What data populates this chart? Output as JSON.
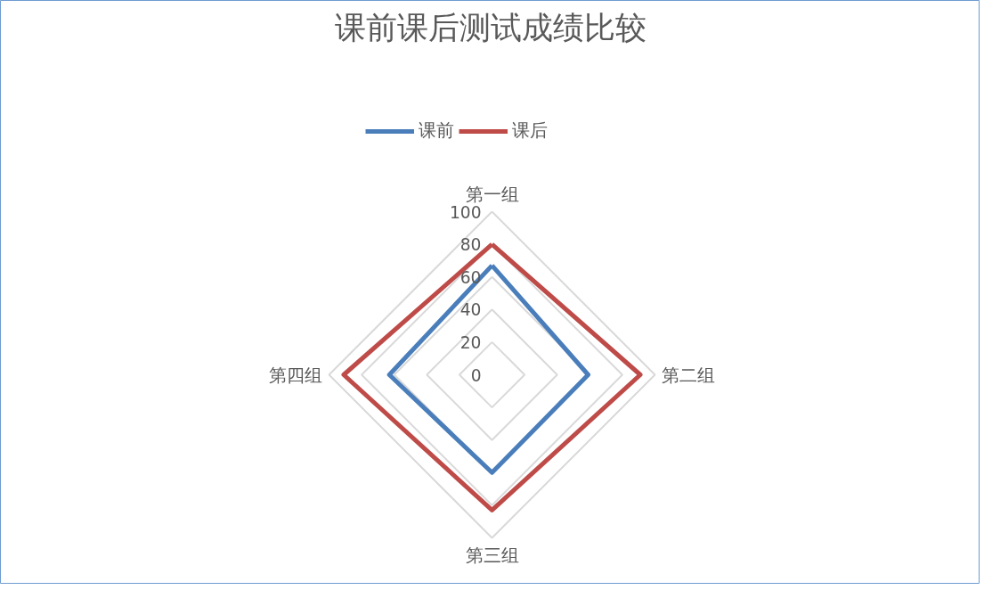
{
  "chart_data": {
    "type": "radar",
    "title": "课前课后测试成绩比较",
    "categories": [
      "第一组",
      "第二组",
      "第三组",
      "第四组"
    ],
    "series": [
      {
        "name": "课前",
        "color": "#4a7ebb",
        "values": [
          67,
          59,
          60,
          63
        ]
      },
      {
        "name": "课后",
        "color": "#be4b48",
        "values": [
          80,
          91,
          83,
          91
        ]
      }
    ],
    "ylim": [
      0,
      100
    ],
    "yticks": [
      0,
      20,
      40,
      60,
      80,
      100
    ],
    "grid": true,
    "legend": "top"
  }
}
